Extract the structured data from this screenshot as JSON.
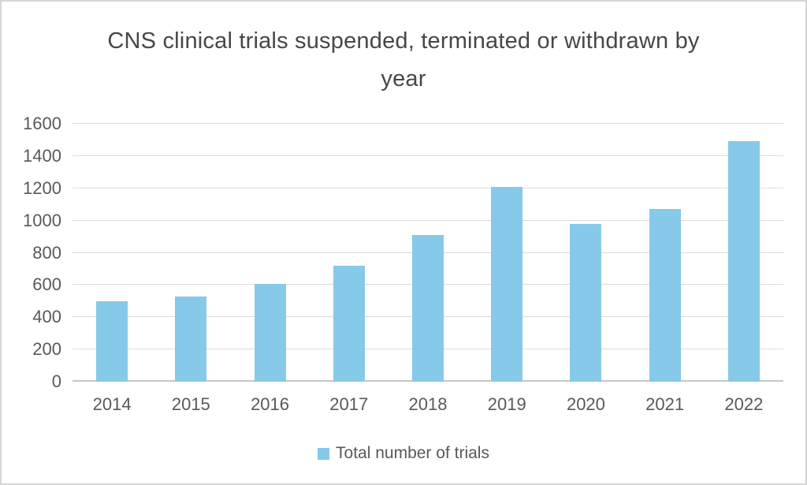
{
  "chart_data": {
    "type": "bar",
    "title": "CNS clinical trials suspended, terminated or withdrawn by year",
    "categories": [
      "2014",
      "2015",
      "2016",
      "2017",
      "2018",
      "2019",
      "2020",
      "2021",
      "2022"
    ],
    "values": [
      500,
      530,
      605,
      720,
      910,
      1210,
      980,
      1070,
      1490
    ],
    "series_name": "Total number of trials",
    "xlabel": "",
    "ylabel": "",
    "ylim": [
      0,
      1600
    ],
    "yticks": [
      0,
      200,
      400,
      600,
      800,
      1000,
      1200,
      1400,
      1600
    ],
    "grid": true,
    "legend_position": "bottom",
    "bar_color": "#87C9E8",
    "colors": {
      "title_text": "#474747",
      "axis_text": "#595959",
      "gridline": "#dcdcdc",
      "axis_line": "#c6c6c6",
      "background": "#ffffff",
      "border": "#d5d5d5"
    }
  }
}
